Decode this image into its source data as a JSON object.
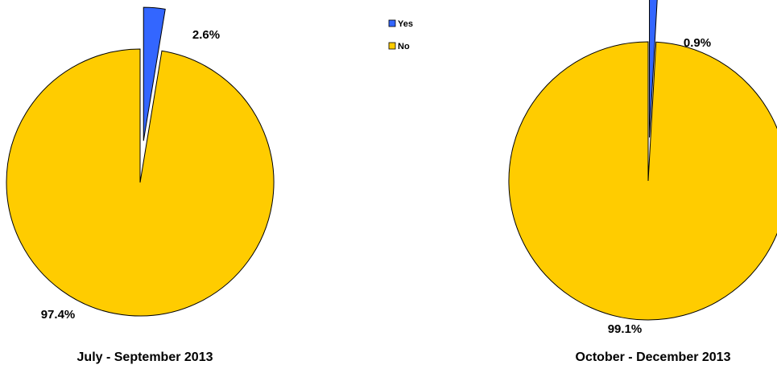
{
  "chart_data": [
    {
      "type": "pie",
      "title": "July - September 2013",
      "slices": [
        {
          "name": "Yes",
          "value": 2.6,
          "label": "2.6%",
          "color": "#3366FF",
          "exploded": true
        },
        {
          "name": "No",
          "value": 97.4,
          "label": "97.4%",
          "color": "#FFCC00",
          "exploded": false
        }
      ]
    },
    {
      "type": "pie",
      "title": "October - December 2013",
      "slices": [
        {
          "name": "Yes",
          "value": 0.9,
          "label": "0.9%",
          "color": "#3366FF",
          "exploded": true
        },
        {
          "name": "No",
          "value": 99.1,
          "label": "99.1%",
          "color": "#FFCC00",
          "exploded": false
        }
      ]
    }
  ],
  "legend": {
    "placement": "top-center",
    "items": [
      {
        "label": "Yes",
        "color": "#3366FF"
      },
      {
        "label": "No",
        "color": "#FFCC00"
      }
    ]
  }
}
